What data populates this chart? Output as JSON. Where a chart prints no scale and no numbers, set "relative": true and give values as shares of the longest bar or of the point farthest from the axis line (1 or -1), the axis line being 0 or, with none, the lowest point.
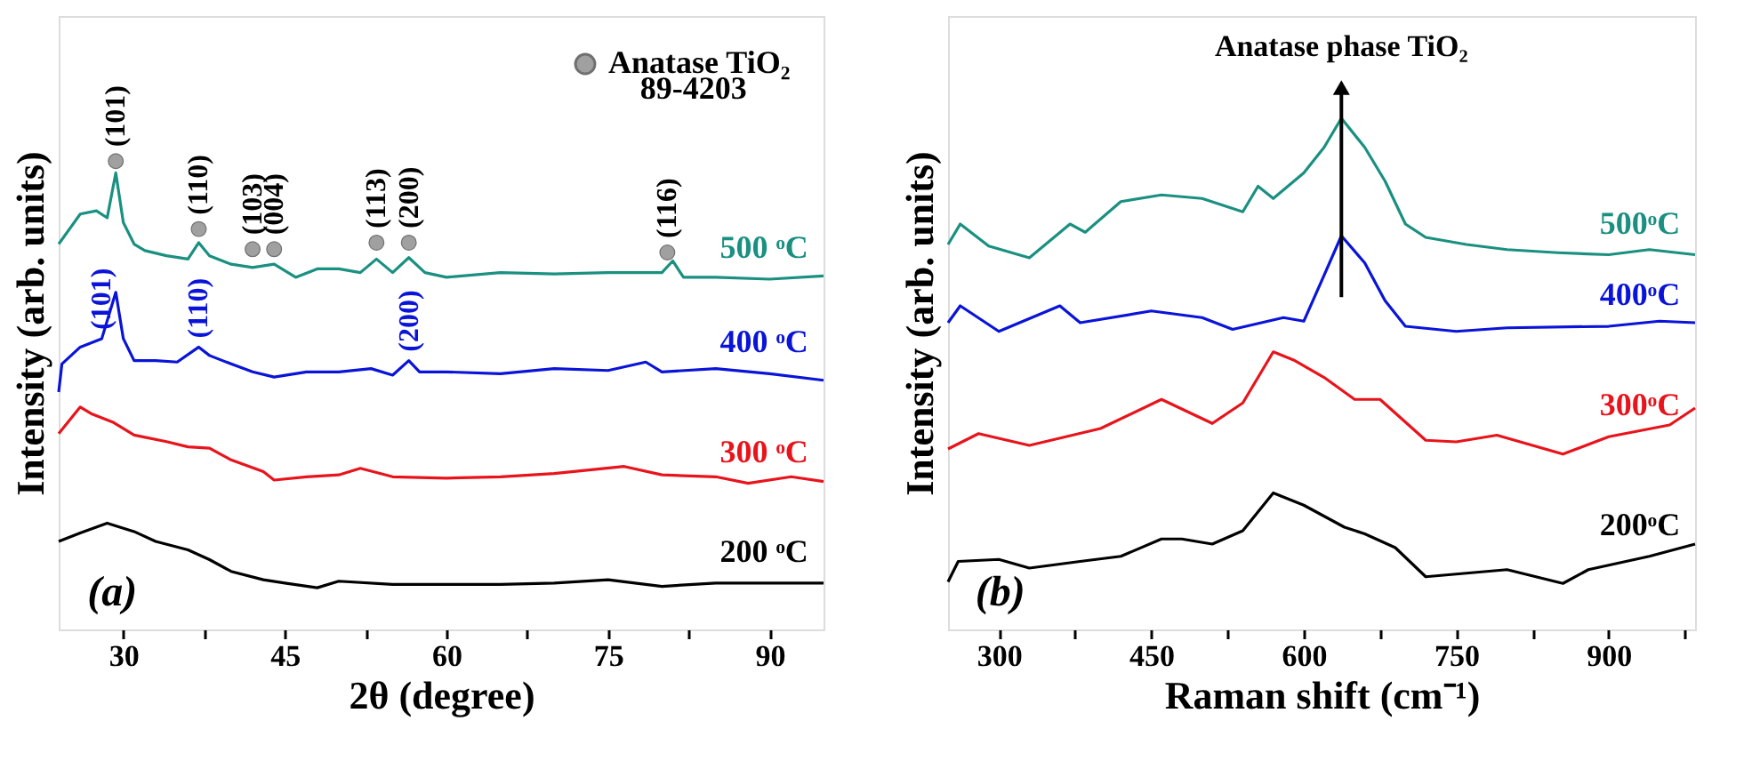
{
  "chart_data": [
    {
      "type": "line",
      "relative": true,
      "xlabel": "2θ (degree)",
      "ylabel": "Intensity (arb. units)",
      "xlim": [
        24,
        95
      ],
      "xticks": [
        30,
        {
          "value": 37.5,
          "label": null
        },
        45,
        {
          "value": 52.5,
          "label": null
        },
        60,
        {
          "value": 67.5,
          "label": null
        },
        75,
        {
          "value": 82.5,
          "label": null
        },
        90
      ],
      "grid": false,
      "legend": "top right",
      "line_style": "solid",
      "series": [
        {
          "name": "500 ᵒC",
          "color": "#1a9080",
          "x": [
            24,
            26,
            27.5,
            28.5,
            29.3,
            30,
            31,
            32,
            34,
            36,
            37,
            38,
            40,
            42,
            44,
            46,
            48,
            50,
            52,
            53.5,
            55,
            56.5,
            58,
            60,
            65,
            70,
            75,
            80,
            81,
            82,
            85,
            90,
            95
          ],
          "values": [
            0.823,
            0.887,
            0.894,
            0.879,
            0.975,
            0.869,
            0.823,
            0.809,
            0.798,
            0.791,
            0.826,
            0.798,
            0.78,
            0.773,
            0.78,
            0.752,
            0.77,
            0.77,
            0.762,
            0.791,
            0.762,
            0.794,
            0.762,
            0.752,
            0.762,
            0.759,
            0.762,
            0.762,
            0.787,
            0.752,
            0.752,
            0.748,
            0.755
          ]
        },
        {
          "name": "400 ᵒC",
          "color": "#0a14d8",
          "x": [
            24,
            24.3,
            26,
            28,
            29.3,
            30,
            31,
            33,
            35,
            37,
            38,
            40,
            42,
            44,
            47,
            50,
            53,
            55,
            56.5,
            57.5,
            60,
            65,
            70,
            75,
            78.5,
            80,
            85,
            90,
            95
          ],
          "values": [
            0.507,
            0.567,
            0.603,
            0.621,
            0.72,
            0.621,
            0.574,
            0.574,
            0.571,
            0.603,
            0.585,
            0.567,
            0.55,
            0.539,
            0.55,
            0.55,
            0.557,
            0.543,
            0.574,
            0.55,
            0.55,
            0.546,
            0.557,
            0.553,
            0.571,
            0.55,
            0.557,
            0.546,
            0.532
          ]
        },
        {
          "name": "300 ᵒC",
          "color": "#e8141c",
          "x": [
            24,
            26,
            27,
            29,
            31,
            34,
            36,
            38,
            40,
            43,
            44,
            47,
            50,
            52,
            55,
            60,
            65,
            70,
            76.5,
            80,
            85,
            88,
            92,
            95
          ],
          "values": [
            0.418,
            0.475,
            0.461,
            0.443,
            0.415,
            0.401,
            0.39,
            0.387,
            0.362,
            0.337,
            0.319,
            0.326,
            0.33,
            0.344,
            0.326,
            0.323,
            0.326,
            0.333,
            0.348,
            0.33,
            0.326,
            0.312,
            0.326,
            0.316
          ]
        },
        {
          "name": "200 ᵒC",
          "color": "#000000",
          "x": [
            24,
            26,
            28.5,
            31,
            33,
            36,
            38,
            40,
            43,
            45,
            48,
            50,
            55,
            60,
            65,
            70,
            75,
            80,
            85,
            90,
            95
          ],
          "values": [
            0.188,
            0.206,
            0.227,
            0.209,
            0.188,
            0.17,
            0.149,
            0.124,
            0.106,
            0.099,
            0.089,
            0.103,
            0.096,
            0.096,
            0.096,
            0.099,
            0.106,
            0.092,
            0.099,
            0.099,
            0.099
          ]
        },
        {
          "name": "Anatase TiO₂",
          "type": "scatter",
          "color": "#a0a0a0",
          "x": [
            29.3,
            37,
            42,
            44,
            53.5,
            56.5,
            80.5
          ],
          "values": [
            1.0,
            0.855,
            0.812,
            0.812,
            0.826,
            0.826,
            0.805
          ]
        }
      ],
      "annotations": [
        {
          "text": "(101)",
          "x": 29.3,
          "y": 1.0
        },
        {
          "text": "(110)",
          "x": 37,
          "y": 0.855
        },
        {
          "text": "(103)",
          "x": 42,
          "y": 0.812
        },
        {
          "text": "(004)",
          "x": 44,
          "y": 0.812
        },
        {
          "text": "(113)",
          "x": 53.5,
          "y": 0.826
        },
        {
          "text": "(200)",
          "x": 56.5,
          "y": 0.826
        },
        {
          "text": "(116)",
          "x": 80.5,
          "y": 0.805
        },
        {
          "text": "(101)",
          "x": 28,
          "y": 0.621
        },
        {
          "text": "(110)",
          "x": 37,
          "y": 0.603
        },
        {
          "text": "(200)",
          "x": 56.5,
          "y": 0.574
        },
        "89-4203",
        "(a)"
      ]
    },
    {
      "type": "line",
      "relative": true,
      "xlabel": "Raman shift (cm⁻¹)",
      "ylabel": "Intensity (arb. units)",
      "xlim": [
        250,
        985
      ],
      "xticks": [
        300,
        {
          "value": 375,
          "label": null
        },
        450,
        {
          "value": 525,
          "label": null
        },
        600,
        {
          "value": 675,
          "label": null
        },
        750,
        {
          "value": 825,
          "label": null
        },
        900,
        {
          "value": 975,
          "label": null
        }
      ],
      "grid": false,
      "line_style": "solid",
      "series": [
        {
          "name": "500ᵒC",
          "color": "#1a9080",
          "x": [
            250,
            262,
            290,
            330,
            370,
            385,
            420,
            460,
            500,
            540,
            555,
            570,
            600,
            620,
            637,
            660,
            680,
            700,
            720,
            760,
            800,
            850,
            900,
            940,
            985
          ],
          "values": [
            0.753,
            0.793,
            0.75,
            0.727,
            0.793,
            0.777,
            0.837,
            0.85,
            0.843,
            0.817,
            0.867,
            0.843,
            0.893,
            0.943,
            1.0,
            0.943,
            0.877,
            0.793,
            0.767,
            0.753,
            0.743,
            0.737,
            0.733,
            0.743,
            0.733
          ]
        },
        {
          "name": "400ᵒC",
          "color": "#0a14d8",
          "x": [
            250,
            262,
            300,
            360,
            380,
            450,
            500,
            530,
            580,
            600,
            620,
            637,
            660,
            680,
            700,
            750,
            800,
            900,
            950,
            985
          ],
          "values": [
            0.6,
            0.633,
            0.583,
            0.633,
            0.6,
            0.623,
            0.61,
            0.587,
            0.61,
            0.603,
            0.693,
            0.77,
            0.717,
            0.643,
            0.593,
            0.583,
            0.59,
            0.593,
            0.603,
            0.6
          ]
        },
        {
          "name": "300ᵒC",
          "color": "#e8141c",
          "x": [
            250,
            280,
            330,
            400,
            460,
            510,
            540,
            570,
            590,
            620,
            650,
            675,
            720,
            750,
            790,
            855,
            900,
            960,
            985
          ],
          "values": [
            0.353,
            0.383,
            0.36,
            0.393,
            0.45,
            0.403,
            0.443,
            0.543,
            0.527,
            0.493,
            0.45,
            0.45,
            0.37,
            0.367,
            0.38,
            0.343,
            0.377,
            0.4,
            0.433
          ]
        },
        {
          "name": "200ᵒC",
          "color": "#000000",
          "x": [
            250,
            260,
            300,
            330,
            380,
            420,
            460,
            480,
            510,
            540,
            570,
            600,
            640,
            660,
            690,
            720,
            760,
            800,
            855,
            880,
            940,
            985
          ],
          "values": [
            0.093,
            0.133,
            0.137,
            0.12,
            0.133,
            0.143,
            0.177,
            0.177,
            0.167,
            0.193,
            0.267,
            0.243,
            0.2,
            0.187,
            0.16,
            0.103,
            0.11,
            0.117,
            0.09,
            0.117,
            0.143,
            0.167
          ]
        }
      ],
      "annotations": [
        {
          "text": "Anatase phase TiO₂",
          "x": 637,
          "y": 1.0
        },
        "(b)"
      ]
    }
  ]
}
